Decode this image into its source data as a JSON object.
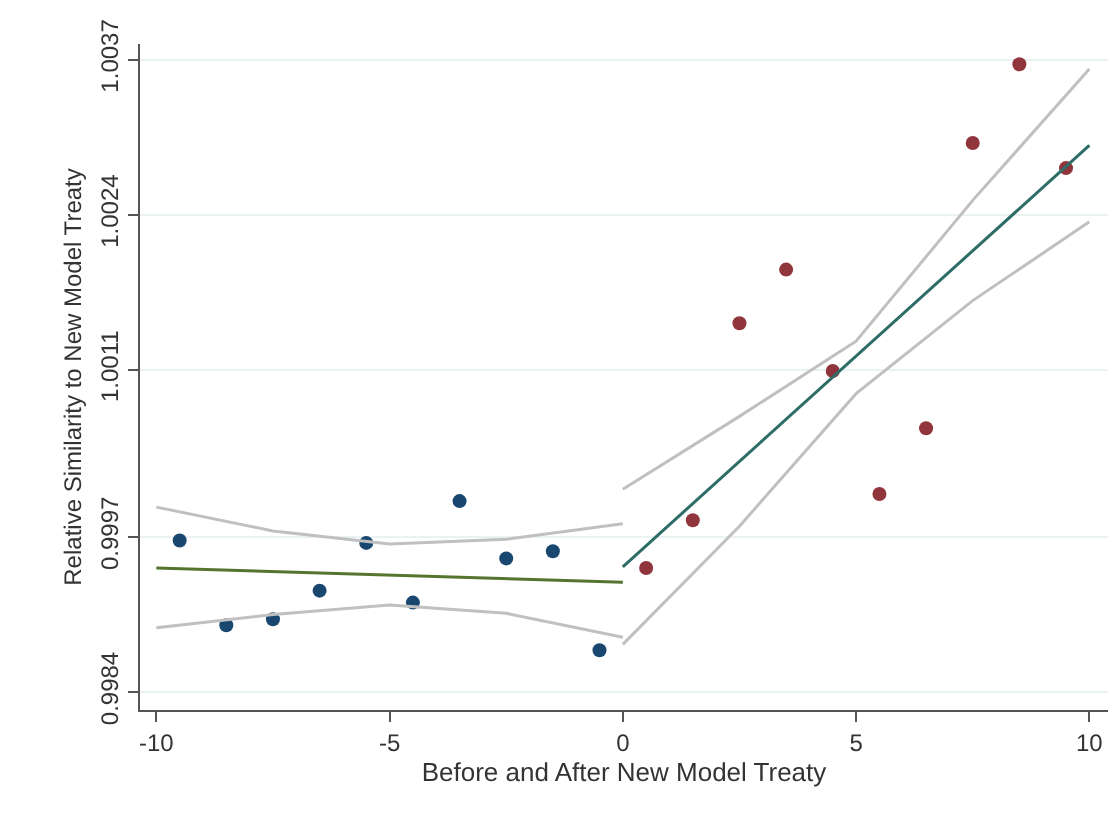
{
  "chart_data": {
    "type": "scatter",
    "xlabel": "Before and After New Model Treaty",
    "ylabel": "Relative Similarity to New Model Treaty",
    "xlim": [
      -10.35,
      10.4
    ],
    "xticks": [
      -10,
      -5,
      0,
      5,
      10
    ],
    "ylim": [
      0.99825,
      1.00383
    ],
    "yticks": [
      0.9984,
      0.9997,
      1.0011,
      1.0024,
      1.0037
    ],
    "grid": "y",
    "marker": "circle",
    "series": [
      {
        "color": "#1a476f",
        "x": [
          -9.5,
          -8.5,
          -7.5,
          -6.5,
          -5.5,
          -4.5,
          -3.5,
          -2.5,
          -1.5,
          -0.5
        ],
        "values": [
          0.99967,
          0.99896,
          0.99901,
          0.99925,
          0.99965,
          0.99915,
          1.0,
          0.99952,
          0.99958,
          0.99875
        ]
      },
      {
        "color": "#90353b",
        "x": [
          0.5,
          1.5,
          2.5,
          3.5,
          4.5,
          5.5,
          6.5,
          7.5,
          8.5,
          9.5
        ],
        "values": [
          0.99944,
          0.99984,
          1.00149,
          1.00194,
          1.00109,
          1.00006,
          1.00061,
          1.003,
          1.00366,
          1.00279
        ]
      },
      {
        "type": "line",
        "color": "#c0c0c0",
        "marker": "none",
        "x": [
          -10,
          -7.5,
          -5,
          -2.5,
          0
        ],
        "values": [
          0.99995,
          0.99975,
          0.99964,
          0.99968,
          0.99981
        ]
      },
      {
        "type": "line",
        "color": "#c0c0c0",
        "marker": "none",
        "x": [
          -10,
          -7.5,
          -5,
          -2.5,
          0
        ],
        "values": [
          0.99894,
          0.99905,
          0.99913,
          0.99906,
          0.99886
        ]
      },
      {
        "type": "line",
        "color": "#c0c0c0",
        "marker": "none",
        "x": [
          0,
          2.5,
          5,
          7.5,
          10
        ],
        "values": [
          1.0001,
          1.00071,
          1.00134,
          1.00252,
          1.00362
        ]
      },
      {
        "type": "line",
        "color": "#c0c0c0",
        "marker": "none",
        "x": [
          0,
          2.5,
          5,
          7.5,
          10
        ],
        "values": [
          0.9988,
          0.99979,
          1.0009,
          1.00168,
          1.00234
        ]
      },
      {
        "type": "line",
        "color": "#55752f",
        "marker": "none",
        "x": [
          -10,
          0
        ],
        "values": [
          0.99944,
          0.99932
        ]
      },
      {
        "type": "line",
        "color": "#2d6d66",
        "marker": "none",
        "x": [
          0,
          10
        ],
        "values": [
          0.99945,
          1.00298
        ]
      }
    ]
  }
}
